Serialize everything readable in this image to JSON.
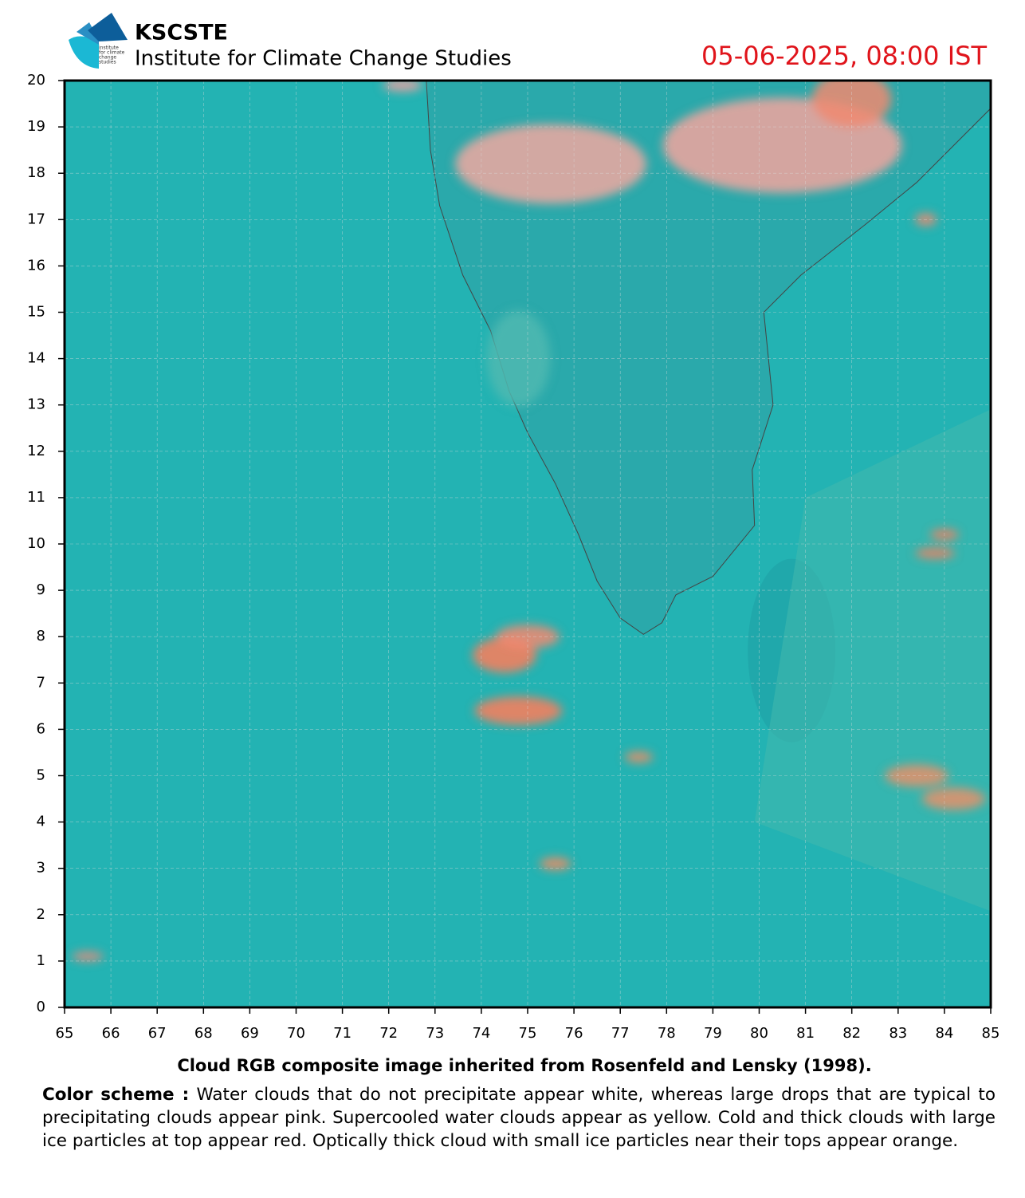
{
  "header": {
    "logo_lines": [
      "institute",
      "for climate",
      "change",
      "studies"
    ],
    "title": "KSCSTE",
    "subtitle": "Institute for Climate Change Studies",
    "timestamp": "05-06-2025, 08:00 IST"
  },
  "map": {
    "xlim": [
      65,
      85
    ],
    "ylim": [
      0,
      20
    ],
    "xticks": [
      65,
      66,
      67,
      68,
      69,
      70,
      71,
      72,
      73,
      74,
      75,
      76,
      77,
      78,
      79,
      80,
      81,
      82,
      83,
      84,
      85
    ],
    "yticks": [
      0,
      1,
      2,
      3,
      4,
      5,
      6,
      7,
      8,
      9,
      10,
      11,
      12,
      13,
      14,
      15,
      16,
      17,
      18,
      19,
      20
    ],
    "grid": true
  },
  "caption": "Cloud RGB composite image inherited from Rosenfeld and Lensky (1998).",
  "color_scheme": {
    "label": "Color scheme :",
    "text": "Water clouds that do not precipitate appear white, whereas large drops that are typical to precipitating clouds appear pink. Supercooled water clouds appear as yellow. Cold and thick clouds with large ice particles at top appear red. Optically thick cloud with small ice particles near their tops appear orange."
  }
}
